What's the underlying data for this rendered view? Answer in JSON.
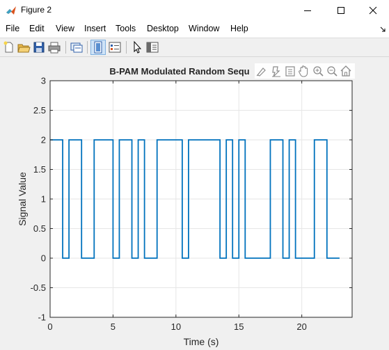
{
  "window": {
    "title": "Figure 2"
  },
  "menu": [
    "File",
    "Edit",
    "View",
    "Insert",
    "Tools",
    "Desktop",
    "Window",
    "Help"
  ],
  "toolbar_icons": [
    "new-figure-icon",
    "open-file-icon",
    "save-icon",
    "print-icon",
    "link-plot-icon",
    "dock-icon",
    "insert-legend-icon",
    "pointer-icon",
    "property-editor-icon"
  ],
  "axes_toolbar_icons": [
    "brush-icon",
    "data-tips-icon",
    "rotate-icon",
    "pan-icon",
    "zoom-in-icon",
    "zoom-out-icon",
    "home-icon"
  ],
  "colors": {
    "line": "#0072bd",
    "axes_bg": "#ffffff",
    "figure_bg": "#f0f0f0",
    "grid": "#e6e6e6"
  },
  "chart_data": {
    "type": "line",
    "title": "B-PAM Modulated Random Sequ",
    "xlabel": "Time (s)",
    "ylabel": "Signal Value",
    "xlim": [
      0,
      24
    ],
    "ylim": [
      -1,
      3
    ],
    "xticks": [
      "0",
      "5",
      "10",
      "15",
      "20"
    ],
    "xtick_values": [
      0,
      5,
      10,
      15,
      20
    ],
    "yticks": [
      "-1",
      "-0.5",
      "0",
      "0.5",
      "1",
      "1.5",
      "2",
      "2.5",
      "3"
    ],
    "ytick_values": [
      -1,
      -0.5,
      0,
      0.5,
      1,
      1.5,
      2,
      2.5,
      3
    ],
    "grid": true,
    "series": [
      {
        "x": [
          0,
          1,
          1,
          1.5,
          1.5,
          2.5,
          2.5,
          3.5,
          3.5,
          5,
          5,
          5.5,
          5.5,
          6.5,
          6.5,
          7,
          7,
          7.5,
          7.5,
          8.5,
          8.5,
          10.5,
          10.5,
          11,
          11,
          13.5,
          13.5,
          14,
          14,
          14.5,
          14.5,
          15,
          15,
          15.5,
          15.5,
          17.5,
          17.5,
          18.5,
          18.5,
          19,
          19,
          19.5,
          19.5,
          21,
          21,
          22,
          22,
          23
        ],
        "y": [
          2,
          2,
          0,
          0,
          2,
          2,
          0,
          0,
          2,
          2,
          0,
          0,
          2,
          2,
          0,
          0,
          2,
          2,
          0,
          0,
          2,
          2,
          0,
          0,
          2,
          2,
          0,
          0,
          2,
          2,
          0,
          0,
          2,
          2,
          0,
          0,
          2,
          2,
          0,
          0,
          2,
          2,
          0,
          0,
          2,
          2,
          0,
          0
        ]
      }
    ]
  }
}
